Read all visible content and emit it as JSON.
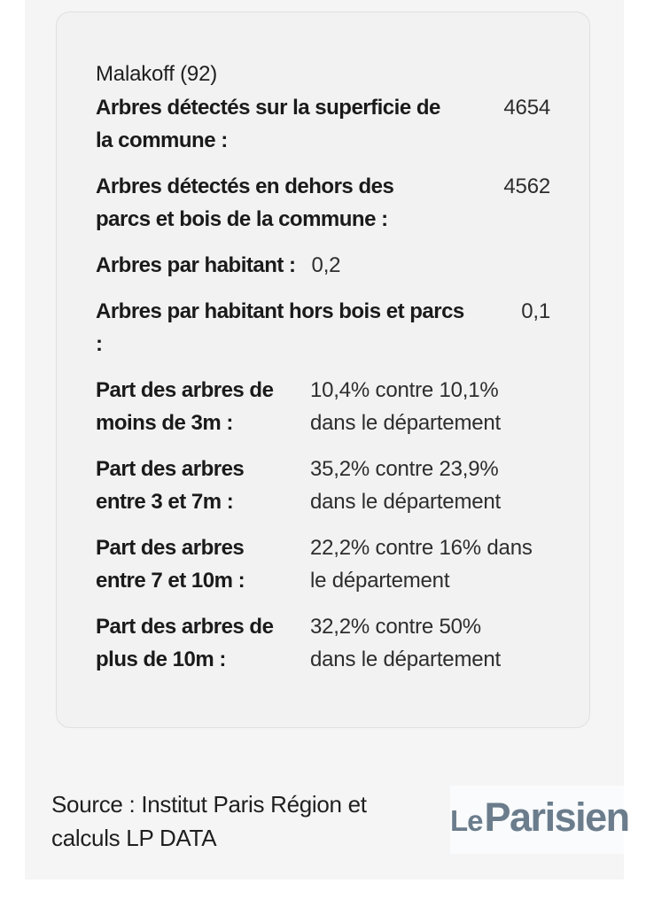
{
  "card": {
    "title": "Malakoff (92)",
    "rows": [
      {
        "label": "Arbres détectés sur la superficie de\nla commune :",
        "value": "4654"
      },
      {
        "label": "Arbres détectés en dehors des\nparcs et bois de la commune :",
        "value": "4562"
      },
      {
        "label": "Arbres par habitant :",
        "value": "0,2"
      },
      {
        "label": "Arbres par habitant hors bois et parcs\n:",
        "value": "0,1"
      },
      {
        "label": "Part des arbres de\nmoins de 3m :",
        "value": "10,4% contre 10,1%\ndans le département"
      },
      {
        "label": "Part des arbres\nentre 3 et 7m :",
        "value": "35,2% contre 23,9%\ndans le département"
      },
      {
        "label": "Part des arbres\nentre 7 et 10m :",
        "value": "22,2% contre 16% dans\nle département"
      },
      {
        "label": "Part des arbres de\nplus de 10m :",
        "value": "32,2% contre 50%\ndans le département"
      }
    ]
  },
  "footer": {
    "source": "Source : Institut Paris Région et\ncalculs LP DATA",
    "logo_le": "Le",
    "logo_parisien": "Parisien"
  },
  "colors": {
    "logo_brand": "#6b7d8c",
    "panel_background": "#f5f5f6",
    "card_background": "#f2f2f2",
    "card_border": "#e0e0e2",
    "text": "#1a1a1a"
  },
  "chart_data": {
    "type": "table",
    "title": "Malakoff (92)",
    "rows": [
      {
        "label": "Arbres détectés sur la superficie de la commune",
        "value": 4654
      },
      {
        "label": "Arbres détectés en dehors des parcs et bois de la commune",
        "value": 4562
      },
      {
        "label": "Arbres par habitant",
        "value": "0,2"
      },
      {
        "label": "Arbres par habitant hors bois et parcs",
        "value": "0,1"
      },
      {
        "label": "Part des arbres de moins de 3m",
        "commune": "10,4%",
        "departement": "10,1%"
      },
      {
        "label": "Part des arbres entre 3 et 7m",
        "commune": "35,2%",
        "departement": "23,9%"
      },
      {
        "label": "Part des arbres entre 7 et 10m",
        "commune": "22,2%",
        "departement": "16%"
      },
      {
        "label": "Part des arbres de plus de 10m",
        "commune": "32,2%",
        "departement": "50%"
      }
    ],
    "source": "Source : Institut Paris Région et calculs LP DATA"
  }
}
